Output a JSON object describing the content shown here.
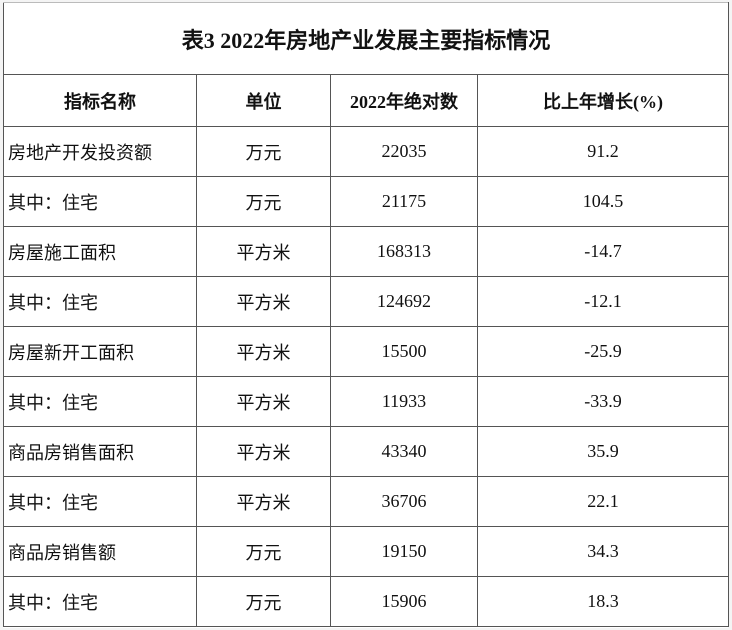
{
  "table": {
    "title": "表3  2022年房地产业发展主要指标情况",
    "header": [
      "指标名称",
      "单位",
      "2022年绝对数",
      "比上年增长(%)"
    ],
    "rows": [
      [
        "房地产开发投资额",
        "万元",
        "22035",
        "91.2"
      ],
      [
        "其中：住宅",
        "万元",
        "21175",
        "104.5"
      ],
      [
        "房屋施工面积",
        "平方米",
        "168313",
        "-14.7"
      ],
      [
        "其中：住宅",
        "平方米",
        "124692",
        "-12.1"
      ],
      [
        "房屋新开工面积",
        "平方米",
        "15500",
        "-25.9"
      ],
      [
        "其中：住宅",
        "平方米",
        "11933",
        "-33.9"
      ],
      [
        "商品房销售面积",
        "平方米",
        "43340",
        "35.9"
      ],
      [
        "其中：住宅",
        "平方米",
        "36706",
        "22.1"
      ],
      [
        "商品房销售额",
        "万元",
        "19150",
        "34.3"
      ],
      [
        "其中：住宅",
        "万元",
        "15906",
        "18.3"
      ]
    ]
  }
}
